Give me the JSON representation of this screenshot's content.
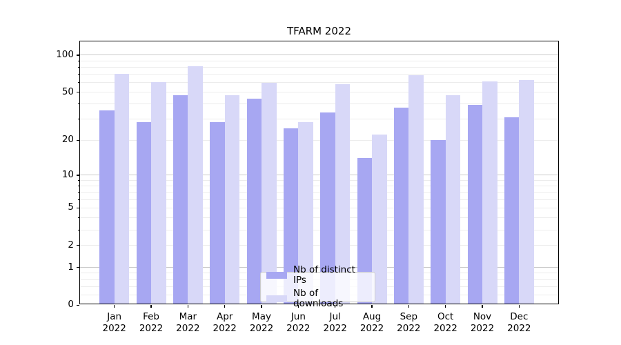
{
  "title": "TFARM 2022",
  "legend": {
    "items": [
      {
        "label": "Nb of distinct IPs",
        "series_key": "ips"
      },
      {
        "label": "Nb of downloads",
        "series_key": "downloads"
      }
    ]
  },
  "axes": {
    "y_tick_labels": [
      "100",
      "50",
      "20",
      "10",
      "5",
      "2",
      "1",
      "0"
    ],
    "y_tick_values": [
      100,
      50,
      20,
      10,
      5,
      2,
      1,
      0
    ],
    "y_minor_values": [
      0.2,
      0.4,
      0.6,
      0.8,
      2,
      3,
      4,
      5,
      6,
      7,
      8,
      9,
      20,
      30,
      40,
      50,
      60,
      70,
      80,
      90
    ],
    "y_major_grid_values": [
      1,
      10,
      100
    ],
    "x_months": [
      "Jan",
      "Feb",
      "Mar",
      "Apr",
      "May",
      "Jun",
      "Jul",
      "Aug",
      "Sep",
      "Oct",
      "Nov",
      "Dec"
    ],
    "x_year": "2022"
  },
  "colors": {
    "ips": "#a7a7f2",
    "downloads": "#d8d8f8",
    "major_grid": "#c9c9c9",
    "minor_grid": "#ececec",
    "axis": "#000000",
    "legend_border": "#cccccc"
  },
  "chart_data": {
    "type": "bar",
    "title": "TFARM 2022",
    "categories": [
      "Jan 2022",
      "Feb 2022",
      "Mar 2022",
      "Apr 2022",
      "May 2022",
      "Jun 2022",
      "Jul 2022",
      "Aug 2022",
      "Sep 2022",
      "Oct 2022",
      "Nov 2022",
      "Dec 2022"
    ],
    "series": [
      {
        "name": "Nb of distinct IPs",
        "values": [
          35,
          28,
          47,
          28,
          44,
          25,
          34,
          14,
          37,
          20,
          39,
          31
        ]
      },
      {
        "name": "Nb of downloads",
        "values": [
          70,
          60,
          81,
          47,
          59,
          28,
          58,
          22,
          68,
          47,
          61,
          62
        ]
      }
    ],
    "yscale": "log1p",
    "ylim": [
      0,
      130
    ],
    "yticks": [
      0,
      1,
      2,
      5,
      10,
      20,
      50,
      100
    ],
    "xlabel": "",
    "ylabel": "",
    "grid": true,
    "legend_position": "lower center"
  }
}
